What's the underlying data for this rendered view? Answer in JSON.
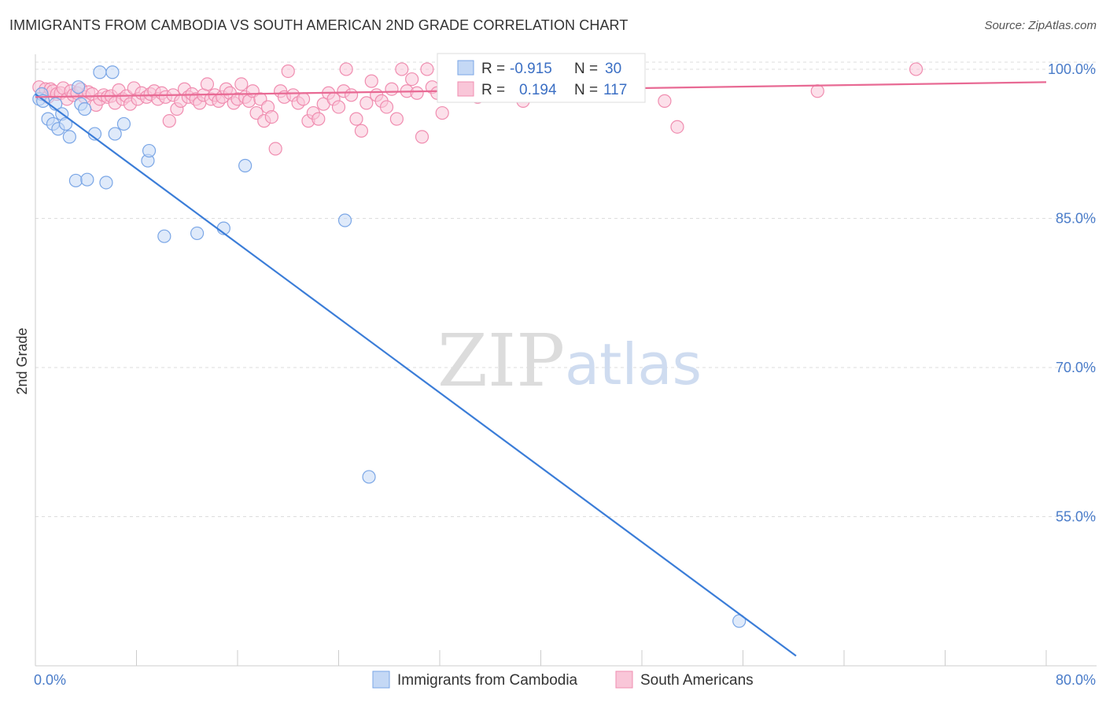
{
  "title": "IMMIGRANTS FROM CAMBODIA VS SOUTH AMERICAN 2ND GRADE CORRELATION CHART",
  "source": "Source: ZipAtlas.com",
  "watermark": {
    "zip": "ZIP",
    "atlas": "atlas"
  },
  "legend_top": {
    "rows": [
      {
        "r_label": "R =",
        "r_value": "-0.915",
        "n_label": "N =",
        "n_value": "30",
        "color": "#7aa6e6",
        "fill": "#c4d8f5"
      },
      {
        "r_label": "R =",
        "r_value": "0.194",
        "n_label": "N =",
        "n_value": "117",
        "color": "#f08db0",
        "fill": "#f9c6d8"
      }
    ]
  },
  "colors": {
    "blue_line": "#3b7dd8",
    "pink_line": "#e86a94",
    "grid": "#dddddd",
    "axis_text": "#4a7cc9"
  },
  "chart_data": {
    "type": "scatter",
    "xlabel": "",
    "ylabel": "2nd Grade",
    "xlim": [
      0,
      80
    ],
    "ylim": [
      40,
      101.5
    ],
    "x_tick_labels": [
      "0.0%",
      "80.0%"
    ],
    "y_ticks": [
      55,
      70,
      85,
      100
    ],
    "y_tick_labels": [
      "55.0%",
      "70.0%",
      "85.0%",
      "100.0%"
    ],
    "legend_placement": "top-center",
    "grid": true,
    "series": [
      {
        "name": "Immigrants from Cambodia",
        "color": "#7aa6e6",
        "trend": {
          "x": [
            0,
            60.2
          ],
          "y": [
            97.5,
            41.0
          ]
        },
        "points": [
          [
            0.3,
            97.0
          ],
          [
            0.5,
            97.5
          ],
          [
            0.6,
            96.8
          ],
          [
            1.0,
            95.0
          ],
          [
            1.4,
            94.5
          ],
          [
            1.6,
            96.5
          ],
          [
            1.8,
            94.0
          ],
          [
            2.1,
            95.5
          ],
          [
            2.4,
            94.5
          ],
          [
            2.7,
            93.2
          ],
          [
            3.2,
            88.8
          ],
          [
            3.4,
            98.2
          ],
          [
            3.6,
            96.5
          ],
          [
            3.9,
            96.0
          ],
          [
            4.1,
            88.9
          ],
          [
            4.7,
            93.5
          ],
          [
            5.1,
            99.7
          ],
          [
            5.6,
            88.6
          ],
          [
            6.1,
            99.7
          ],
          [
            6.3,
            93.5
          ],
          [
            7.0,
            94.5
          ],
          [
            8.9,
            90.8
          ],
          [
            9.0,
            91.8
          ],
          [
            10.2,
            83.2
          ],
          [
            12.8,
            83.5
          ],
          [
            14.9,
            84.0
          ],
          [
            16.6,
            90.3
          ],
          [
            24.5,
            84.8
          ],
          [
            26.4,
            59.0
          ],
          [
            55.7,
            44.5
          ]
        ]
      },
      {
        "name": "South Americans",
        "color": "#f08db0",
        "trend": {
          "x": [
            0,
            80
          ],
          "y": [
            97.2,
            98.7
          ]
        },
        "points": [
          [
            0.3,
            98.2
          ],
          [
            0.5,
            97.5
          ],
          [
            0.8,
            98.0
          ],
          [
            1.0,
            97.2
          ],
          [
            1.2,
            98.0
          ],
          [
            1.4,
            97.8
          ],
          [
            1.7,
            97.5
          ],
          [
            2.0,
            97.6
          ],
          [
            2.2,
            98.1
          ],
          [
            2.5,
            97.0
          ],
          [
            2.8,
            97.8
          ],
          [
            3.0,
            97.4
          ],
          [
            3.3,
            97.6
          ],
          [
            3.6,
            98.0
          ],
          [
            3.9,
            97.2
          ],
          [
            4.2,
            97.7
          ],
          [
            4.5,
            97.5
          ],
          [
            4.8,
            96.4
          ],
          [
            5.1,
            97.0
          ],
          [
            5.4,
            97.4
          ],
          [
            5.7,
            97.2
          ],
          [
            6.0,
            97.3
          ],
          [
            6.3,
            96.6
          ],
          [
            6.6,
            97.9
          ],
          [
            6.9,
            97.0
          ],
          [
            7.2,
            97.3
          ],
          [
            7.5,
            96.5
          ],
          [
            7.8,
            98.1
          ],
          [
            8.1,
            97.0
          ],
          [
            8.4,
            97.6
          ],
          [
            8.8,
            97.2
          ],
          [
            9.1,
            97.5
          ],
          [
            9.4,
            97.8
          ],
          [
            9.7,
            97.0
          ],
          [
            10.0,
            97.6
          ],
          [
            10.3,
            97.2
          ],
          [
            10.6,
            94.8
          ],
          [
            10.9,
            97.4
          ],
          [
            11.2,
            96.0
          ],
          [
            11.5,
            96.8
          ],
          [
            11.8,
            98.0
          ],
          [
            12.1,
            97.2
          ],
          [
            12.4,
            97.5
          ],
          [
            12.7,
            97.0
          ],
          [
            13.0,
            96.6
          ],
          [
            13.3,
            97.4
          ],
          [
            13.6,
            98.5
          ],
          [
            13.9,
            97.0
          ],
          [
            14.2,
            97.4
          ],
          [
            14.5,
            96.8
          ],
          [
            14.8,
            97.2
          ],
          [
            15.1,
            98.0
          ],
          [
            15.4,
            97.6
          ],
          [
            15.7,
            96.6
          ],
          [
            16.0,
            97.0
          ],
          [
            16.3,
            98.5
          ],
          [
            16.6,
            97.2
          ],
          [
            16.9,
            96.8
          ],
          [
            17.2,
            97.8
          ],
          [
            17.5,
            95.6
          ],
          [
            17.8,
            97.0
          ],
          [
            18.1,
            94.8
          ],
          [
            18.4,
            96.2
          ],
          [
            18.7,
            95.2
          ],
          [
            19.0,
            92.0
          ],
          [
            19.4,
            97.8
          ],
          [
            19.7,
            97.2
          ],
          [
            20.0,
            99.8
          ],
          [
            20.4,
            97.4
          ],
          [
            20.8,
            96.6
          ],
          [
            21.2,
            97.0
          ],
          [
            21.6,
            94.8
          ],
          [
            22.0,
            95.6
          ],
          [
            22.4,
            95.0
          ],
          [
            22.8,
            96.5
          ],
          [
            23.2,
            97.6
          ],
          [
            23.6,
            97.0
          ],
          [
            24.0,
            96.2
          ],
          [
            24.4,
            97.8
          ],
          [
            24.6,
            100.0
          ],
          [
            25.0,
            97.4
          ],
          [
            25.4,
            95.0
          ],
          [
            25.8,
            93.8
          ],
          [
            26.2,
            96.6
          ],
          [
            26.6,
            98.8
          ],
          [
            27.0,
            97.4
          ],
          [
            27.4,
            96.8
          ],
          [
            27.8,
            96.2
          ],
          [
            28.2,
            98.0
          ],
          [
            28.6,
            95.0
          ],
          [
            29.0,
            100.0
          ],
          [
            29.4,
            97.8
          ],
          [
            29.8,
            99.0
          ],
          [
            30.2,
            97.6
          ],
          [
            30.6,
            93.2
          ],
          [
            31.0,
            100.0
          ],
          [
            31.4,
            98.2
          ],
          [
            31.8,
            97.6
          ],
          [
            32.2,
            95.6
          ],
          [
            32.6,
            98.8
          ],
          [
            33.2,
            99.6
          ],
          [
            33.8,
            98.4
          ],
          [
            34.4,
            97.8
          ],
          [
            35.0,
            97.2
          ],
          [
            35.6,
            98.6
          ],
          [
            36.2,
            97.6
          ],
          [
            36.8,
            98.8
          ],
          [
            37.4,
            97.4
          ],
          [
            38.0,
            98.0
          ],
          [
            38.6,
            96.8
          ],
          [
            39.2,
            98.4
          ],
          [
            40.0,
            97.6
          ],
          [
            41.0,
            99.2
          ],
          [
            49.8,
            96.8
          ],
          [
            50.8,
            94.2
          ],
          [
            61.9,
            97.8
          ],
          [
            69.7,
            100.0
          ]
        ]
      }
    ]
  }
}
